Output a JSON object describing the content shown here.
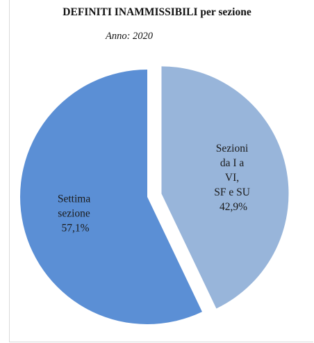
{
  "chart_data": {
    "type": "pie",
    "title": "DEFINITI INAMMISSIBILI per sezione",
    "subtitle": "Anno: 2020",
    "slices": [
      {
        "label_lines": [
          "Settima",
          "sezione",
          "57,1%"
        ],
        "value": 57.1,
        "color": "#5b8fd5",
        "exploded": false
      },
      {
        "label_lines": [
          "Sezioni",
          "da I a",
          "VI,",
          "SF e SU",
          "42,9%"
        ],
        "value": 42.9,
        "color": "#98b5da",
        "exploded": true
      }
    ],
    "legend": "none"
  }
}
